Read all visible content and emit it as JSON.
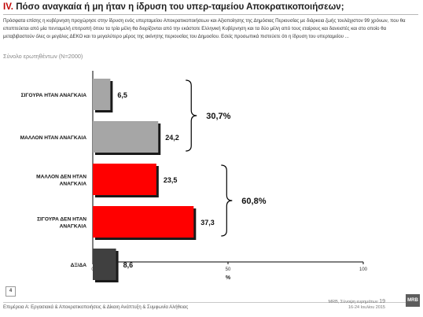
{
  "header": {
    "title_roman": "IV.",
    "title_text": "Πόσο αναγκαία ή μη ήταν η ίδρυση του υπερ-ταμείου Αποκρατικοποιήσεων;",
    "intro": "Πρόσφατα επίσης η κυβέρνηση προχώρησε στην ίδρυση ενός υπερταμείου Αποκρατικοποιήσεων και Αξιοποίησης της Δημόσιας Περιουσίας με διάρκεια ζωής τουλάχιστον 99 χρόνων, που θα εποπτεύεται από μία πενταμελή επιτροπή όπου τα τρία μέλη θα διορίζονται από την εκάστοτε Ελληνική Κυβέρνηση και τα δύο μέλη από τους εταίρους και δανειστές και στο οποίο θα μεταβιβαστούν όλες οι μεγάλες ΔΕΚΟ και το μεγαλύτερο μέρος της ακίνητης περιουσίας του Δημοσίου. Εσείς προσωπικά πιστεύετε ότι η ίδρυση του υπερταμείου ...",
    "sample": "Σύνολο ερωτηθέντων (N=2000)"
  },
  "chart_data": {
    "type": "bar",
    "orientation": "horizontal",
    "categories": [
      "ΣΙΓΟΥΡΑ ΗΤΑΝ ΑΝΑΓΚΑΙΑ",
      "ΜΑΛΛΟΝ ΗΤΑΝ ΑΝΑΓΚΑΙΑ",
      "ΜΑΛΛΟΝ ΔΕΝ ΗΤΑΝ ΑΝΑΓΚΑΙΑ",
      "ΣΙΓΟΥΡΑ ΔΕΝ ΗΤΑΝ ΑΝΑΓΚΑΙΑ",
      "ΔΞ/ΔΑ"
    ],
    "values": [
      6.5,
      24.2,
      23.5,
      37.3,
      8.6
    ],
    "value_labels": [
      "6,5",
      "24,2",
      "23,5",
      "37,3",
      "8,6"
    ],
    "colors": [
      "#a6a6a6",
      "#a6a6a6",
      "#ff0000",
      "#ff0000",
      "#404040"
    ],
    "xlim": [
      0,
      100
    ],
    "xticks": [
      0,
      50,
      100
    ],
    "xlabel": "%",
    "grid": false,
    "groups": [
      {
        "label": "30,7%",
        "categories": [
          0,
          1
        ]
      },
      {
        "label": "60,8%",
        "categories": [
          2,
          3
        ]
      }
    ]
  },
  "footer": {
    "page_number": "4",
    "left_text": "Επιμέρεια Α: Εργασιακά & Αποκρατικοποιήσεις & Δίκαιη Ανάπτυξη & Συμφωνία Αλήθειας",
    "source_line1": "MRB, Σύνοψη ευρημάτων",
    "source_page": "19",
    "source_line2": "16-24 Ιουλίου 2015",
    "logo_text": "MRB"
  }
}
